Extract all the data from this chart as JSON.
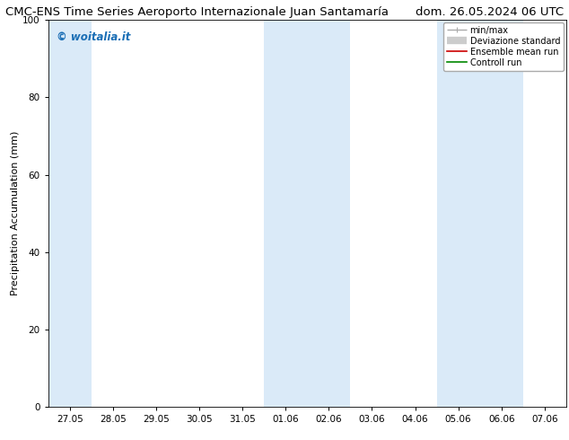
{
  "title_left": "CMC-ENS Time Series Aeroporto Internazionale Juan Santamaría",
  "title_right": "dom. 26.05.2024 06 UTC",
  "ylabel": "Precipitation Accumulation (mm)",
  "ylim": [
    0,
    100
  ],
  "yticks": [
    0,
    20,
    40,
    60,
    80,
    100
  ],
  "xtick_labels": [
    "27.05",
    "28.05",
    "29.05",
    "30.05",
    "31.05",
    "01.06",
    "02.06",
    "03.06",
    "04.06",
    "05.06",
    "06.06",
    "07.06"
  ],
  "watermark": "© woitalia.it",
  "watermark_color": "#1a6eb5",
  "bg_color": "#ffffff",
  "plot_bg_color": "#ffffff",
  "band_color": "#daeaf8",
  "band_groups": [
    [
      0
    ],
    [
      5,
      6
    ],
    [
      9,
      10
    ]
  ],
  "legend_entries": [
    "min/max",
    "Deviazione standard",
    "Ensemble mean run",
    "Controll run"
  ],
  "legend_line_colors": [
    "#aaaaaa",
    "#cccccc",
    "#cc0000",
    "#008800"
  ],
  "title_fontsize": 9.5,
  "axis_label_fontsize": 8,
  "tick_fontsize": 7.5,
  "watermark_fontsize": 8.5
}
